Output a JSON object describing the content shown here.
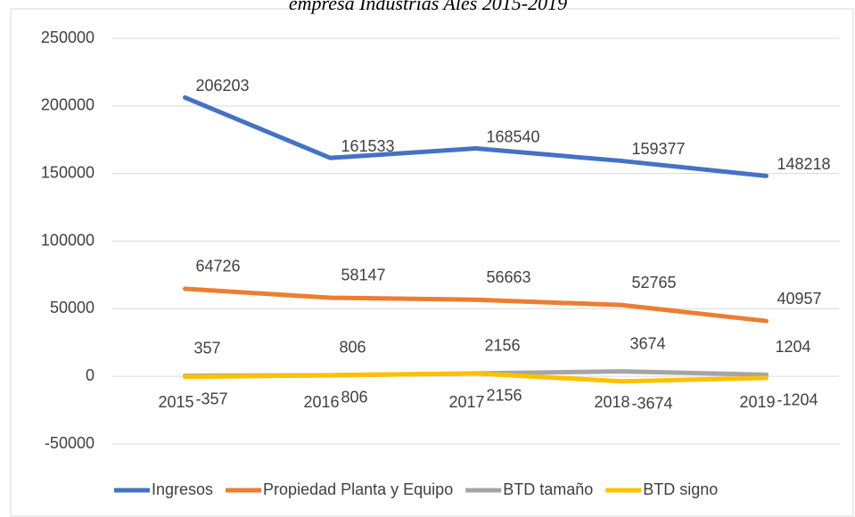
{
  "chart_data": {
    "type": "line",
    "title": "empresa Industrias Ales 2015-2019",
    "categories": [
      "2015",
      "2016",
      "2017",
      "2018",
      "2019"
    ],
    "series": [
      {
        "name": "Ingresos",
        "color": "#4472c4",
        "values": [
          206203,
          161533,
          168540,
          159377,
          148218
        ]
      },
      {
        "name": "Propiedad Planta y Equipo",
        "color": "#ed7d31",
        "values": [
          64726,
          58147,
          56663,
          52765,
          40957
        ]
      },
      {
        "name": "BTD tamaño",
        "color": "#a5a5a5",
        "values": [
          357,
          806,
          2156,
          3674,
          1204
        ]
      },
      {
        "name": "BTD signo",
        "color": "#ffc000",
        "values": [
          -357,
          806,
          2156,
          -3674,
          -1204
        ]
      }
    ],
    "ylim": [
      -50000,
      250000
    ],
    "yticks": [
      -50000,
      0,
      50000,
      100000,
      150000,
      200000,
      250000
    ],
    "grid": true,
    "legend": "bottom"
  }
}
